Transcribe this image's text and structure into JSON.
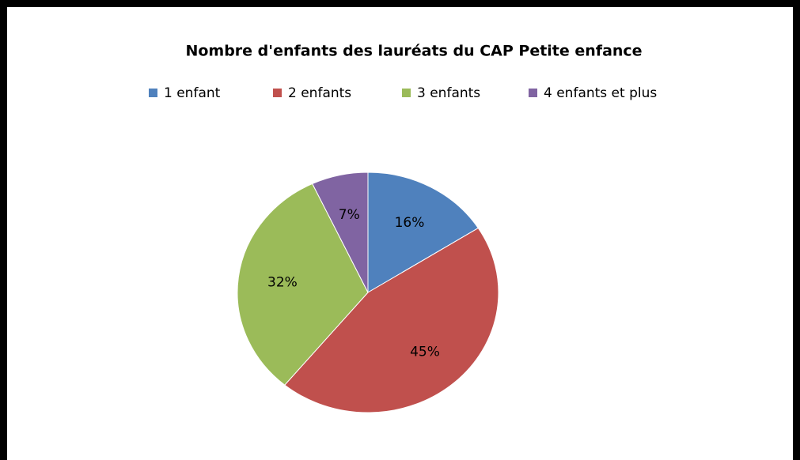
{
  "chart_data": {
    "type": "pie",
    "title": "Nombre d'enfants  des lauréats du CAP Petite enfance",
    "categories": [
      "1 enfant",
      "2 enfants",
      "3 enfants",
      "4 enfants et plus"
    ],
    "values": [
      16,
      45,
      32,
      7
    ],
    "value_labels": [
      "16%",
      "45%",
      "32%",
      "7%"
    ],
    "colors": [
      "#4f81bd",
      "#c0504d",
      "#9bbb59",
      "#8064a2"
    ],
    "legend": "top"
  }
}
